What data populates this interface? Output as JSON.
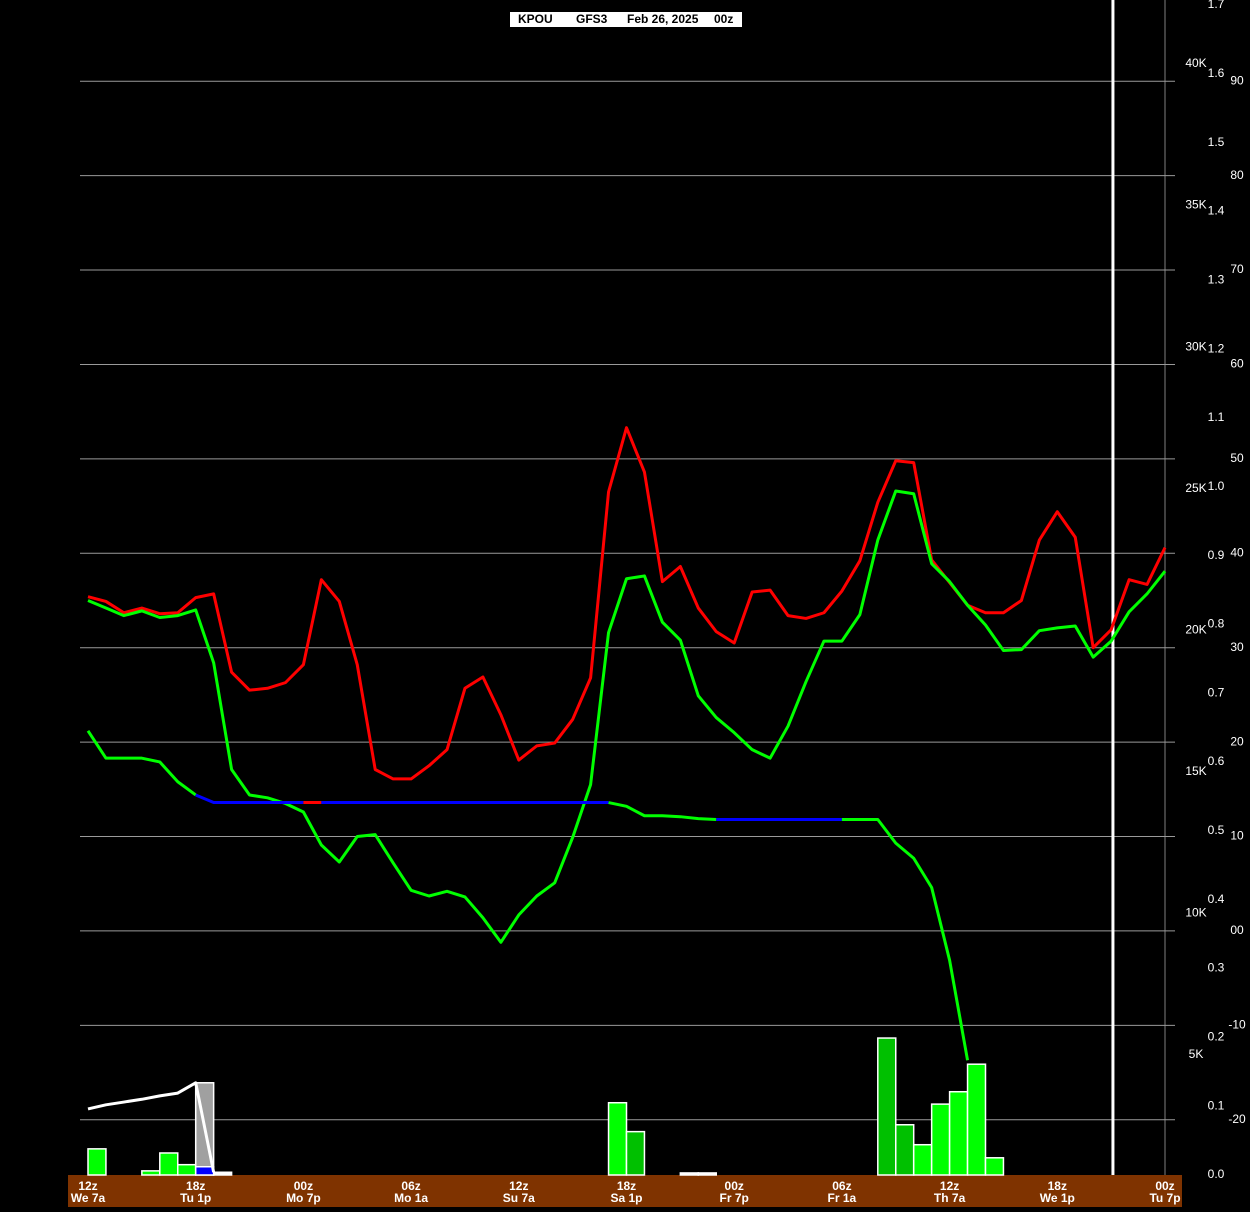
{
  "chart_data": {
    "type": "line",
    "station": "KPOU",
    "model": "GFS3",
    "date": "Feb 26, 2025",
    "run": "00z",
    "x": [
      0,
      1,
      2,
      3,
      4,
      5,
      6,
      7,
      8,
      9,
      10,
      11,
      12,
      13,
      14,
      15,
      16,
      17,
      18,
      19,
      20,
      21,
      22,
      23,
      24,
      25,
      26,
      27,
      28,
      29,
      30,
      31,
      32,
      33,
      34,
      35,
      36,
      37,
      38,
      39,
      40,
      41,
      42,
      43,
      44,
      45,
      46,
      47,
      48,
      49,
      50,
      51,
      52,
      53,
      54,
      55,
      56,
      57,
      58,
      59,
      60
    ],
    "xlim": [
      0,
      60
    ],
    "xticks": [
      {
        "value": 0,
        "label": "12z",
        "sublabel": "We 7a"
      },
      {
        "value": 6,
        "label": "18z",
        "sublabel": "Tu 1p"
      },
      {
        "value": 12,
        "label": "00z",
        "sublabel": "Mo 7p"
      },
      {
        "value": 18,
        "label": "06z",
        "sublabel": "Mo 1a"
      },
      {
        "value": 24,
        "label": "12z",
        "sublabel": "Su 7a"
      },
      {
        "value": 30,
        "label": "18z",
        "sublabel": "Sa 1p"
      },
      {
        "value": 36,
        "label": "00z",
        "sublabel": "Fr 7p"
      },
      {
        "value": 42,
        "label": "06z",
        "sublabel": "Fr 1a"
      },
      {
        "value": 48,
        "label": "12z",
        "sublabel": "Th 7a"
      },
      {
        "value": 54,
        "label": "18z",
        "sublabel": "We 1p"
      },
      {
        "value": 60,
        "label": "00z",
        "sublabel": "Tu 7p"
      }
    ],
    "ylim": [
      -25.85,
      98.6
    ],
    "yticks": [
      90,
      80,
      70,
      60,
      50,
      40,
      30,
      20,
      10,
      {
        "value": 0,
        "label": "00"
      },
      -10,
      -20
    ],
    "y2lim": [
      0,
      1.7
    ],
    "y2ticks": [
      {
        "value": 0,
        "label": "0.0"
      },
      0.1,
      0.2,
      0.3,
      0.4,
      0.5,
      0.6,
      0.7,
      0.8,
      0.9,
      {
        "value": 1,
        "label": "1.0"
      },
      1.1,
      1.2,
      1.3,
      1.4,
      1.5,
      1.6,
      1.7
    ],
    "y3lim": [
      0.76,
      42.26
    ],
    "y3ticks": [
      {
        "value": 5,
        "label": "5K"
      },
      {
        "value": 10,
        "label": "10K"
      },
      {
        "value": 15,
        "label": "15K"
      },
      {
        "value": 20,
        "label": "20K"
      },
      {
        "value": 25,
        "label": "25K"
      },
      {
        "value": 30,
        "label": "30K"
      },
      {
        "value": 35,
        "label": "35K"
      },
      {
        "value": 40,
        "label": "40K"
      }
    ],
    "grid": true,
    "vline": 57.1,
    "series": [
      {
        "color": "#ff0000",
        "values": [
          35.4,
          34.9,
          33.7,
          34.2,
          33.6,
          33.7,
          35.3,
          35.7,
          27.4,
          25.5,
          25.7,
          26.3,
          28.2,
          37.2,
          34.9,
          28.2,
          17.1,
          16.1,
          16.1,
          17.5,
          19.2,
          25.7,
          26.9,
          22.9,
          18.1,
          19.6,
          19.9,
          22.4,
          26.8,
          46.5,
          53.3,
          48.6,
          37.0,
          38.6,
          34.2,
          31.7,
          30.5,
          35.9,
          36.1,
          33.4,
          33.1,
          33.7,
          36.0,
          39.2,
          45.4,
          49.8,
          49.6,
          39.3,
          36.9,
          34.5,
          33.7,
          33.7,
          35.0,
          41.4,
          44.4,
          41.7,
          30.0,
          31.9,
          37.2,
          36.7,
          40.6
        ]
      },
      {
        "color": "#00ff00",
        "values": [
          35.0,
          34.2,
          33.4,
          33.9,
          33.2,
          33.4,
          34.0,
          28.4,
          17.1,
          14.4,
          14.1,
          13.5,
          12.6,
          9.1,
          7.3,
          10.0,
          10.2,
          7.2,
          4.3,
          3.7,
          4.2,
          3.6,
          1.4,
          -1.2,
          1.7,
          3.7,
          5.1,
          9.9,
          15.5,
          31.6,
          37.3,
          37.6,
          32.7,
          30.8,
          24.9,
          22.6,
          21.0,
          19.2,
          18.3,
          21.7,
          26.4,
          30.7,
          30.7,
          33.5,
          41.4,
          46.6,
          46.3,
          38.9,
          37.0,
          34.5,
          32.4,
          29.7,
          29.8,
          31.8,
          32.1,
          32.3,
          29.0,
          30.7,
          33.8,
          35.7,
          38.1
        ]
      },
      {
        "colors": [
          "#00ff00",
          "#00ff00",
          "#00ff00",
          "#00ff00",
          "#00ff00",
          "#00ff00",
          "#0000ff",
          "#0000ff",
          "#0000ff",
          "#0000ff",
          "#0000ff",
          "#0000ff",
          "#ff0000",
          "#0000ff",
          "#0000ff",
          "#0000ff",
          "#0000ff",
          "#0000ff",
          "#0000ff",
          "#0000ff",
          "#0000ff",
          "#0000ff",
          "#0000ff",
          "#0000ff",
          "#0000ff",
          "#0000ff",
          "#0000ff",
          "#0000ff",
          "#0000ff",
          "#00ff00",
          "#00ff00",
          "#00ff00",
          "#00ff00",
          "#00ff00",
          "#00ff00",
          "#0000ff",
          "#0000ff",
          "#0000ff",
          "#0000ff",
          "#0000ff",
          "#0000ff",
          "#0000ff",
          "#00ff00",
          "#00ff00",
          "#00ff00",
          "#00ff00",
          "#00ff00",
          "#00ff00",
          "#00ff00",
          "#00ff00",
          "#00ff00",
          "#00ff00",
          "#00ff00",
          "#00ff00",
          "#00ff00",
          "#00ff00",
          "#00ff00",
          "#00ff00",
          "#00ff00",
          "#00ff00",
          "#00ff00"
        ],
        "values": [
          21.2,
          18.3,
          18.3,
          18.3,
          17.9,
          15.8,
          14.4,
          13.6,
          13.6,
          13.6,
          13.6,
          13.6,
          13.6,
          13.6,
          13.6,
          13.6,
          13.6,
          13.6,
          13.6,
          13.6,
          13.6,
          13.6,
          13.6,
          13.6,
          13.6,
          13.6,
          13.6,
          13.6,
          13.6,
          13.6,
          13.2,
          12.2,
          12.2,
          12.1,
          11.9,
          11.8,
          11.8,
          11.8,
          11.8,
          11.8,
          11.8,
          11.8,
          11.8,
          11.8,
          11.8,
          9.3,
          7.7,
          4.6,
          -3.1,
          -13.7,
          null,
          null,
          null,
          null,
          null,
          null,
          null,
          null,
          null,
          null,
          null
        ]
      },
      {
        "color": "#ffffff",
        "axis": "y2",
        "values": [
          0.096,
          0.102,
          0.106,
          0.11,
          0.115,
          0.119,
          0.134,
          0.004,
          null,
          null,
          null,
          null,
          null,
          null,
          null,
          null,
          null,
          null,
          null,
          null,
          null,
          null,
          null,
          null,
          null,
          null,
          null,
          null,
          null,
          null,
          null,
          null,
          null,
          null,
          null,
          null,
          null,
          null,
          null,
          null,
          null,
          null,
          null,
          null,
          null,
          null,
          null,
          null,
          null,
          null,
          null,
          null,
          null,
          null,
          null,
          null,
          null,
          null,
          null,
          null,
          null
        ]
      }
    ],
    "bars": [
      {
        "axis": "y2",
        "x": [
          0,
          3,
          4,
          5,
          6,
          7,
          29,
          30,
          33,
          34,
          44,
          45,
          46,
          47,
          48,
          49,
          50
        ],
        "values": [
          0.038,
          0.006,
          0.032,
          0.015,
          0.134,
          0.004,
          0.105,
          0.063,
          0.003,
          0.003,
          0.199,
          0.073,
          0.044,
          0.103,
          0.121,
          0.161,
          0.025
        ],
        "colors": [
          "#00ff00",
          "#00ff00",
          "#00ff00",
          "#00ff00",
          "#a0a0a0",
          "#ffffff",
          "#00ff00",
          "#00c000",
          "#ffffff",
          "#ffffff",
          "#00c000",
          "#00c000",
          "#00ff00",
          "#00ff00",
          "#00ff00",
          "#00ff00",
          "#00ff00"
        ]
      },
      {
        "axis": "y2",
        "x": [
          6
        ],
        "values": [
          0.012
        ],
        "colors": [
          "#0000ff"
        ]
      }
    ]
  }
}
